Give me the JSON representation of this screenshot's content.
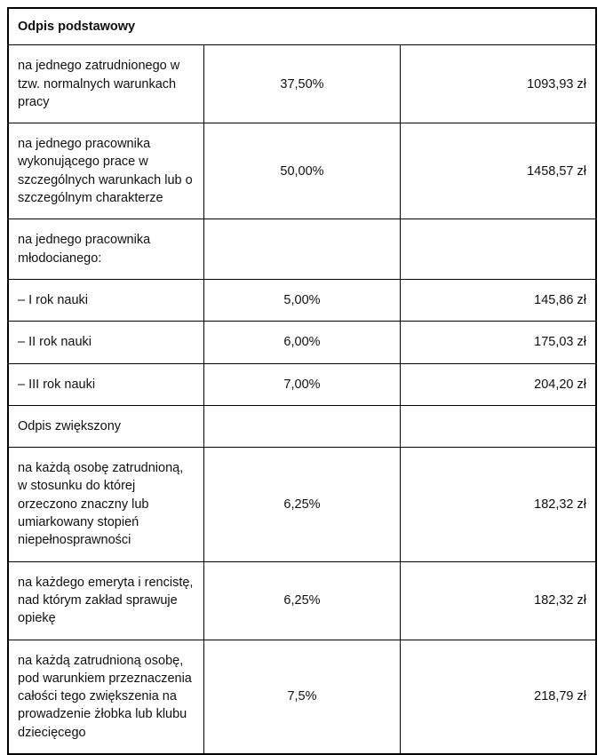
{
  "table": {
    "title": "Odpis podstawowy",
    "rows": [
      {
        "label": "na jednego zatrudnionego w tzw. normalnych warunkach pracy",
        "percent": "37,50%",
        "amount": "1093,93 zł"
      },
      {
        "label": "na jednego pracownika wykonującego prace w szczególnych warunkach lub o szczególnym charakterze",
        "percent": "50,00%",
        "amount": "1458,57 zł"
      },
      {
        "label": "na jednego pracownika młodocianego:",
        "percent": "",
        "amount": ""
      },
      {
        "label": "– I rok nauki",
        "percent": "5,00%",
        "amount": "145,86 zł"
      },
      {
        "label": "– II rok nauki",
        "percent": "6,00%",
        "amount": "175,03 zł"
      },
      {
        "label": "– III rok nauki",
        "percent": "7,00%",
        "amount": "204,20 zł"
      },
      {
        "label": "Odpis zwiększony",
        "percent": "",
        "amount": ""
      },
      {
        "label": "na każdą osobę zatrudnioną, w stosunku do której orzeczono znaczny lub umiarkowany stopień niepełnosprawności",
        "percent": "6,25%",
        "amount": "182,32 zł"
      },
      {
        "label": "na każdego emeryta i rencistę, nad którym zakład sprawuje opiekę",
        "percent": "6,25%",
        "amount": "182,32 zł"
      },
      {
        "label": "na każdą zatrudnioną osobę, pod warunkiem przeznaczenia całości tego zwiększenia na prowadzenie żłobka lub klubu dziecięcego",
        "percent": "7,5%",
        "amount": "218,79 zł"
      }
    ]
  }
}
